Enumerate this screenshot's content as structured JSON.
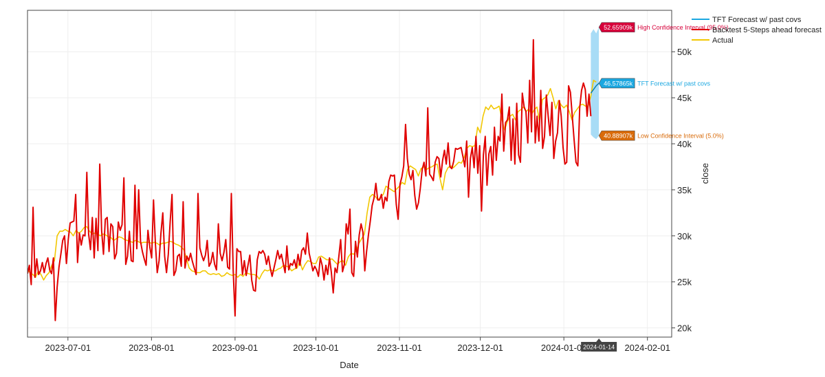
{
  "chart_data": {
    "type": "line",
    "xlabel": "Date",
    "ylabel": "close",
    "x_ticks": [
      "2023-07-01",
      "2023-08-01",
      "2023-09-01",
      "2023-10-01",
      "2023-11-01",
      "2023-12-01",
      "2024-01-01",
      "2024-02-01"
    ],
    "x_range": [
      "2023-06-16",
      "2024-02-10"
    ],
    "y_ticks": [
      "20k",
      "25k",
      "30k",
      "35k",
      "40k",
      "45k",
      "50k"
    ],
    "y_tick_values": [
      20000,
      25000,
      30000,
      35000,
      40000,
      45000,
      50000
    ],
    "ylim": [
      19000,
      54500
    ],
    "grid": true,
    "legend_position": "top-right",
    "hover_date_label": "2024-01-14",
    "colors": {
      "actual": "#f2c700",
      "backtest": "#e00000",
      "forecast": "#1aa7e0",
      "band": "#a8dcf6",
      "high": "#d6003a",
      "low": "#d96b0a"
    },
    "legend": [
      {
        "label": "TFT Forecast w/ past covs",
        "color": "#1aa7e0"
      },
      {
        "label": "Backtest 5-Steps ahead forecast",
        "color": "#e00000"
      },
      {
        "label": "Actual",
        "color": "#f2c700"
      }
    ],
    "annotations": {
      "high": {
        "value": "52.65909k",
        "label": "High Confidence Interval (95.0%)"
      },
      "forecast": {
        "value": "46.57865k",
        "label": "TFT Forecast w/ past covs"
      },
      "low": {
        "value": "40.88907k",
        "label": "Low Confidence Interval (5.0%)"
      }
    },
    "series": [
      {
        "name": "Actual",
        "key": "actual",
        "x_start": "2023-06-16",
        "values": [
          26300,
          26000,
          25800,
          25500,
          26200,
          25800,
          25200,
          25700,
          26000,
          26800,
          27300,
          30000,
          30500,
          30500,
          30700,
          30500,
          30400,
          30000,
          30600,
          30300,
          30500,
          30900,
          31000,
          30500,
          30200,
          30300,
          30200,
          30000,
          30200,
          30100,
          29900,
          29800,
          29500,
          29700,
          29900,
          29800,
          29600,
          29500,
          29400,
          29300,
          29500,
          29400,
          29200,
          29300,
          29300,
          29300,
          29200,
          29300,
          29200,
          29000,
          29200,
          29200,
          29300,
          29400,
          29300,
          29100,
          29000,
          28800,
          28500,
          27500,
          26500,
          26200,
          26100,
          26000,
          26000,
          26200,
          26200,
          25900,
          25800,
          25900,
          25800,
          25900,
          25600,
          25700,
          26000,
          25800,
          25700,
          25800,
          25500,
          25800,
          25600,
          26000,
          25900,
          25800,
          25800,
          25700,
          25300,
          25900,
          26300,
          26200,
          26300,
          26200,
          26200,
          26400,
          26500,
          26800,
          26700,
          26600,
          26200,
          26400,
          26500,
          27300,
          26300,
          26900,
          27300,
          27200,
          27000,
          27000,
          27700,
          27800,
          27600,
          27400,
          27400,
          27500,
          27200,
          26900,
          27200,
          27300,
          26800,
          27700,
          28100,
          28000,
          28400,
          29200,
          29700,
          30200,
          32500,
          34200,
          34500,
          34300,
          33900,
          34200,
          34500,
          35400,
          35200,
          35000,
          34800,
          35100,
          35400,
          35800,
          35600,
          37200,
          37600,
          37400,
          37200,
          36500,
          37300,
          37500,
          37200,
          37400,
          37500,
          37700,
          37800,
          36300,
          35000,
          36800,
          37400,
          37600,
          37400,
          37700,
          38000,
          37900,
          38500,
          39500,
          39800,
          39700,
          39800,
          41800,
          41200,
          43000,
          44000,
          43700,
          44200,
          43800,
          43900,
          44100,
          42700,
          41500,
          42400,
          43000,
          43200,
          42600,
          43500,
          43700,
          44000,
          43500,
          43800,
          43200,
          43700,
          44000,
          42400,
          44800,
          45000,
          45300,
          46000,
          45000,
          43800,
          44700,
          44200,
          43900,
          44200,
          43500,
          42600,
          43400,
          43800,
          44200,
          44300,
          44100,
          44100,
          45200,
          46900,
          46700
        ]
      },
      {
        "name": "Backtest 5-Steps ahead forecast",
        "key": "backtest",
        "x_start": "2023-06-16",
        "values": [
          25900,
          26800,
          24700,
          33100,
          25500,
          27500,
          25800,
          26200,
          27100,
          26000,
          27000,
          27600,
          26300,
          25900,
          27600,
          20800,
          24400,
          26600,
          28000,
          29500,
          30000,
          27000,
          29600,
          31400,
          31500,
          31600,
          34500,
          27100,
          30300,
          29000,
          30100,
          30000,
          36900,
          30200,
          28500,
          32000,
          27600,
          31900,
          28400,
          37800,
          30600,
          28000,
          31800,
          32000,
          28300,
          31300,
          31000,
          27500,
          28100,
          31500,
          30600,
          31200,
          36300,
          26900,
          27800,
          30500,
          27300,
          27200,
          35500,
          28600,
          35000,
          29400,
          28300,
          27500,
          26800,
          30600,
          28800,
          27600,
          33900,
          29200,
          26000,
          27300,
          30300,
          32500,
          27800,
          26000,
          28000,
          31500,
          34500,
          25700,
          26200,
          27800,
          28000,
          26700,
          33700,
          26500,
          27800,
          27300,
          28100,
          27200,
          26500,
          25800,
          34600,
          28700,
          27900,
          27300,
          27900,
          29500,
          26700,
          27100,
          28200,
          26900,
          26300,
          31300,
          28100,
          27300,
          28200,
          29600,
          26600,
          26400,
          34600,
          26200,
          21300,
          28600,
          28300,
          28300,
          25800,
          27300,
          25700,
          26800,
          27900,
          25200,
          24100,
          24000,
          27400,
          28300,
          28100,
          28400,
          28000,
          26900,
          27800,
          26500,
          25600,
          26500,
          27400,
          28400,
          27500,
          28000,
          27000,
          26000,
          28900,
          26300,
          27000,
          26800,
          27400,
          26500,
          28000,
          26800,
          28400,
          28700,
          28000,
          30300,
          28100,
          27200,
          26200,
          26700,
          26300,
          25600,
          27600,
          26800,
          25200,
          26800,
          25800,
          27600,
          26000,
          23800,
          26500,
          26000,
          27700,
          29600,
          26100,
          26900,
          31300,
          30200,
          32900,
          26000,
          25600,
          29400,
          27700,
          30100,
          31300,
          30400,
          26200,
          28300,
          30100,
          31600,
          33300,
          34100,
          35700,
          33900,
          33900,
          34500,
          33000,
          34200,
          33800,
          35900,
          36600,
          36500,
          36600,
          33400,
          31800,
          35600,
          36400,
          37600,
          42100,
          38400,
          36700,
          36100,
          37100,
          34400,
          32900,
          33600,
          35200,
          37200,
          38000,
          36500,
          43900,
          36700,
          36400,
          36000,
          38000,
          38600,
          38400,
          36400,
          38200,
          39300,
          37800,
          40100,
          37500,
          37300,
          38100,
          39500,
          39400,
          39500,
          39600,
          38600,
          37500,
          40300,
          34200,
          38400,
          39600,
          37400,
          40800,
          36800,
          39800,
          32700,
          38800,
          40800,
          35500,
          38900,
          39700,
          36600,
          41800,
          38200,
          40800,
          40300,
          45400,
          39200,
          42300,
          42600,
          44000,
          38200,
          42700,
          37800,
          44400,
          38800,
          38000,
          45500,
          44000,
          43500,
          40100,
          46900,
          41300,
          51300,
          40100,
          43000,
          40300,
          45800,
          39500,
          40800,
          45300,
          43000,
          40900,
          44500,
          38400,
          40300,
          41200,
          44700,
          43000,
          39600,
          37800,
          38000,
          46300,
          45600,
          43000,
          40400,
          38000,
          37600,
          43900,
          45800,
          46600,
          45900,
          43000,
          45400,
          43000
        ],
        "x_end": "2024-01-11"
      }
    ],
    "forecast": {
      "dates": [
        "2024-01-11",
        "2024-01-12",
        "2024-01-13",
        "2024-01-14"
      ],
      "median": [
        45500,
        45900,
        46300,
        46580
      ],
      "high": [
        52000,
        52450,
        52000,
        52659
      ],
      "low": [
        41000,
        40700,
        40500,
        40889
      ]
    }
  }
}
